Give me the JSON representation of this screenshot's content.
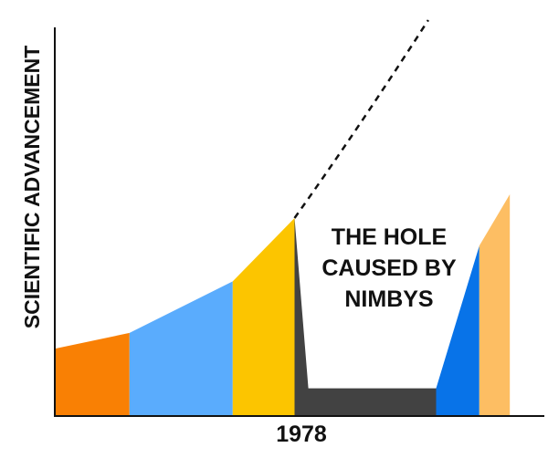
{
  "chart_data": {
    "type": "area",
    "title": "",
    "ylabel": "SCIENTIFIC ADVANCEMENT",
    "xlabel": "1978",
    "annotation": {
      "lines": [
        "THE HOLE",
        "CAUSED BY",
        "NIMBYS"
      ]
    },
    "axes": {
      "x_ticks": "none",
      "y_ticks": "none",
      "grid": false,
      "legend": "none"
    },
    "xlim": [
      0,
      100
    ],
    "ylim": [
      0,
      100
    ],
    "segments": [
      {
        "color": "#f98004",
        "points": [
          [
            0,
            17
          ],
          [
            15.2,
            21
          ],
          [
            15.2,
            0
          ],
          [
            0,
            0
          ]
        ]
      },
      {
        "color": "#5aacfd",
        "points": [
          [
            15.2,
            21
          ],
          [
            36.2,
            34
          ],
          [
            36.2,
            0
          ],
          [
            15.2,
            0
          ]
        ]
      },
      {
        "color": "#fcc500",
        "points": [
          [
            36.2,
            34
          ],
          [
            48.8,
            50
          ],
          [
            48.8,
            0
          ],
          [
            36.2,
            0
          ]
        ]
      },
      {
        "color": "#424242",
        "points": [
          [
            48.8,
            50
          ],
          [
            51.6,
            7
          ],
          [
            77.6,
            7
          ],
          [
            77.6,
            0
          ],
          [
            48.8,
            0
          ]
        ]
      },
      {
        "color": "#0873e8",
        "points": [
          [
            77.6,
            7
          ],
          [
            86.4,
            43
          ],
          [
            86.4,
            0
          ],
          [
            77.6,
            0
          ]
        ]
      },
      {
        "color": "#fdbe63",
        "points": [
          [
            86.4,
            43
          ],
          [
            92.6,
            56
          ],
          [
            92.6,
            0
          ],
          [
            86.4,
            0
          ]
        ]
      }
    ],
    "trend_line": {
      "style": "dashed",
      "color": "#111111",
      "points": [
        [
          48.8,
          50
        ],
        [
          62,
          73
        ],
        [
          76,
          100
        ]
      ]
    }
  }
}
